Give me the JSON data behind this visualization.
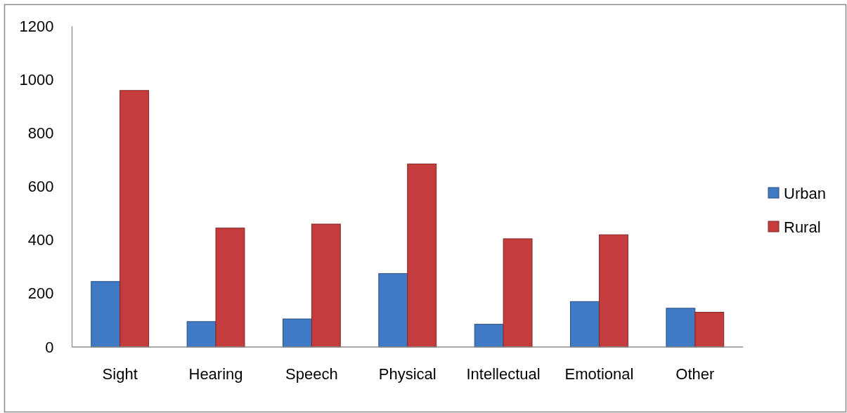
{
  "chart_data": {
    "type": "bar",
    "categories": [
      "Sight",
      "Hearing",
      "Speech",
      "Physical",
      "Intellectual",
      "Emotional",
      "Other"
    ],
    "series": [
      {
        "name": "Urban",
        "color": "#4079c4",
        "values": [
          245,
          95,
          105,
          275,
          85,
          170,
          145
        ]
      },
      {
        "name": "Rural",
        "color": "#c43c3c",
        "values": [
          960,
          445,
          460,
          685,
          405,
          420,
          130
        ]
      }
    ],
    "ylim": [
      0,
      1200
    ],
    "yticks": [
      0,
      200,
      400,
      600,
      800,
      1000,
      1200
    ],
    "legend": "right"
  }
}
